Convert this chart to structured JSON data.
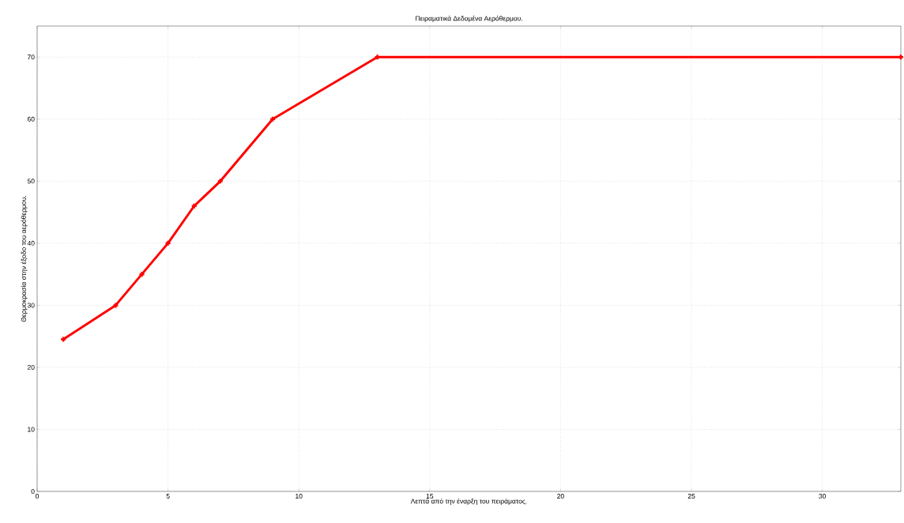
{
  "chart_data": {
    "type": "line",
    "title": "Πειραματικά Δεδομένα Αερόθερμου.",
    "xlabel": "Λεπτά από την έναρξη του πειράματος.",
    "ylabel": "Θερμοκρασία στην έξοδο του αερόθερμου.",
    "x": [
      1,
      3,
      4,
      5,
      6,
      7,
      9,
      13,
      33
    ],
    "series": [
      {
        "color": "#ff0000",
        "values": [
          24.5,
          30,
          35,
          40,
          46,
          50,
          60,
          70,
          70
        ]
      }
    ],
    "xlim": [
      0,
      33
    ],
    "ylim": [
      0,
      75
    ],
    "xticks": [
      0,
      5,
      10,
      15,
      20,
      25,
      30
    ],
    "yticks": [
      0,
      10,
      20,
      30,
      40,
      50,
      60,
      70
    ],
    "grid": true,
    "marker": "cross",
    "line_style": "solid"
  }
}
